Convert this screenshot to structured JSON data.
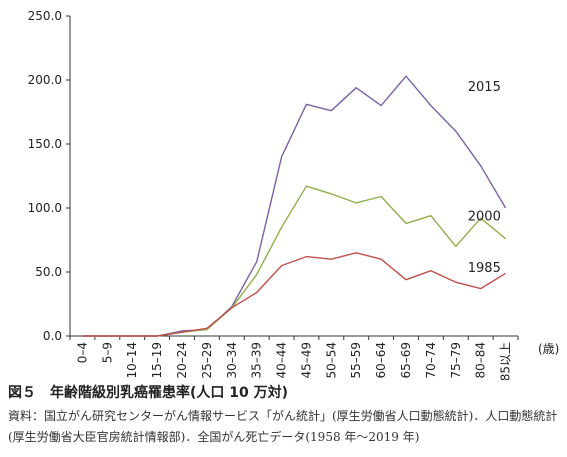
{
  "chart_data": {
    "type": "line",
    "categories": [
      "0–4",
      "5–9",
      "10–14",
      "15–19",
      "20–24",
      "25–29",
      "30–34",
      "35–39",
      "40–44",
      "45–49",
      "50–54",
      "55–59",
      "60–64",
      "65–69",
      "70–74",
      "75–79",
      "80–84",
      "85以上"
    ],
    "x_unit": "(歳)",
    "ylim": [
      0,
      250
    ],
    "yticks": [
      "0.0",
      "50.0",
      "100.0",
      "150.0",
      "200.0",
      "250.0"
    ],
    "grid": false,
    "series": [
      {
        "name": "2015",
        "color": "#7b62a8",
        "values": [
          0,
          0,
          0,
          0,
          4,
          5,
          23,
          58,
          140,
          181,
          176,
          194,
          180,
          203,
          180,
          160,
          133,
          100
        ]
      },
      {
        "name": "2000",
        "color": "#8db04a",
        "values": [
          0,
          0,
          0,
          0,
          3,
          5,
          22,
          48,
          85,
          117,
          111,
          104,
          109,
          88,
          94,
          70,
          92,
          76
        ]
      },
      {
        "name": "1985",
        "color": "#c0504d",
        "values": [
          0,
          0,
          0,
          0,
          3,
          6,
          22,
          34,
          55,
          62,
          60,
          65,
          60,
          44,
          51,
          42,
          37,
          49
        ]
      }
    ]
  },
  "caption": {
    "figure_no": "図５",
    "title": "年齢階級別乳癌罹患率(人口 10 万対)"
  },
  "source_note": "資料：国立がん研究センターがん情報サービス「がん統計」(厚生労働省人口動態統計)．人口動態統計(厚生労働省大臣官房統計情報部)．全国がん死亡データ(1958 年～2019 年)"
}
